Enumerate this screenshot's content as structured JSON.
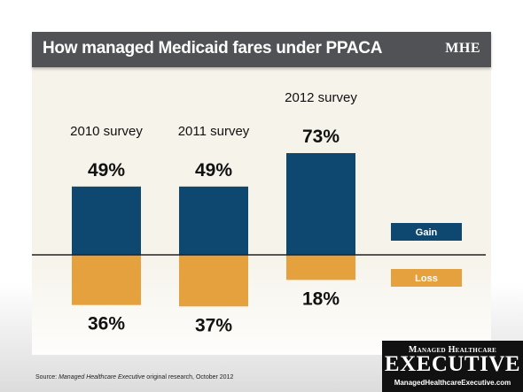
{
  "chart_data": {
    "type": "bar",
    "title": "How managed Medicaid fares under PPACA",
    "categories": [
      "2010 survey",
      "2011 survey",
      "2012 survey"
    ],
    "series": [
      {
        "name": "Gain",
        "values": [
          49,
          49,
          73
        ],
        "labels": [
          "49%",
          "49%",
          "73%"
        ],
        "color": "#0e4770"
      },
      {
        "name": "Loss",
        "values": [
          36,
          37,
          18
        ],
        "labels": [
          "36%",
          "37%",
          "18%"
        ],
        "color": "#e6a13f"
      }
    ],
    "orientation": "gain-above-loss-below",
    "legend": "right",
    "grid": false,
    "baseline_color": "#222222"
  },
  "header": {
    "title": "How managed Medicaid fares under PPACA",
    "logo": "MHE"
  },
  "footer": {
    "source_prefix": "Source: ",
    "source_italic": "Managed Healthcare Executive",
    "source_suffix": " original research, October 2012"
  },
  "brand": {
    "top": "Managed Healthcare",
    "main": "EXECUTIVE",
    "url": "ManagedHealthcareExecutive.com"
  }
}
